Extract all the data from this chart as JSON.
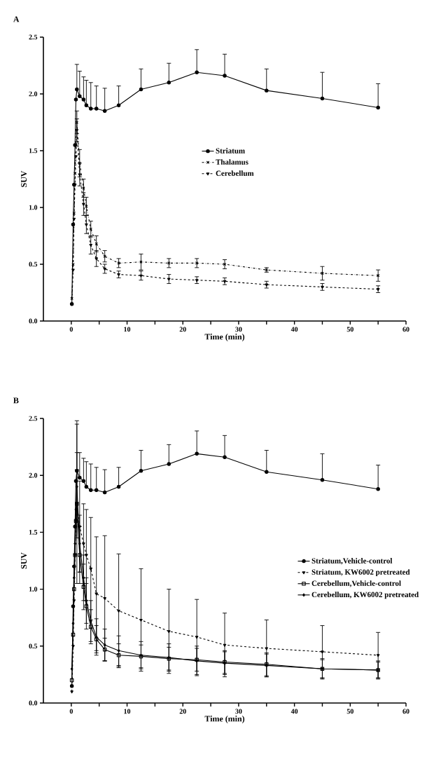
{
  "chart_data": [
    {
      "type": "line",
      "title": "A",
      "xlabel": "Time (min)",
      "ylabel": "SUV",
      "legend": "center",
      "x": [
        0.1,
        0.33,
        0.5,
        0.67,
        0.83,
        1.0,
        1.5,
        2.2,
        2.7,
        3.5,
        4.5,
        6,
        8.5,
        12.5,
        17.5,
        22.5,
        27.5,
        35,
        45,
        55
      ],
      "xlim": [
        -5,
        60
      ],
      "ylim": [
        0,
        2.5
      ],
      "xticks": [
        0,
        {
          "value": 5,
          "label": null
        },
        10,
        {
          "value": 15,
          "label": null
        },
        20,
        {
          "value": 25,
          "label": null
        },
        30,
        {
          "value": 35,
          "label": null
        },
        40,
        {
          "value": 45,
          "label": null
        },
        50,
        {
          "value": 55,
          "label": null
        },
        60
      ],
      "yticks": [
        {
          "value": 0,
          "label": "0.0"
        },
        {
          "value": 0.5,
          "label": "0.5"
        },
        {
          "value": 1,
          "label": "1.0"
        },
        {
          "value": 1.5,
          "label": "1.5"
        },
        {
          "value": 2,
          "label": "2.0"
        },
        {
          "value": 2.5,
          "label": "2.5"
        }
      ],
      "series": [
        {
          "name": "Striatum",
          "color": "#000000",
          "marker": "circle",
          "line_style": "solid",
          "values": [
            0.15,
            0.85,
            1.2,
            1.55,
            1.95,
            2.04,
            1.98,
            1.95,
            1.9,
            1.87,
            1.87,
            1.85,
            1.9,
            2.04,
            2.1,
            2.19,
            2.16,
            2.03,
            1.96,
            1.88
          ],
          "errors": [
            null,
            null,
            null,
            null,
            null,
            [
              2.04,
              2.26
            ],
            [
              1.98,
              2.2
            ],
            [
              1.95,
              2.15
            ],
            [
              1.9,
              2.12
            ],
            [
              1.87,
              2.1
            ],
            [
              1.87,
              2.07
            ],
            [
              1.85,
              2.05
            ],
            [
              1.9,
              2.07
            ],
            [
              2.04,
              2.22
            ],
            [
              2.1,
              2.27
            ],
            [
              2.19,
              2.39
            ],
            [
              2.16,
              2.35
            ],
            [
              2.03,
              2.22
            ],
            [
              1.96,
              2.19
            ],
            [
              1.88,
              2.09
            ]
          ]
        },
        {
          "name": "Thalamus",
          "color": "#000000",
          "marker": "cross",
          "line_style": "dashdot",
          "values": [
            0.2,
            0.5,
            0.95,
            1.3,
            1.55,
            1.75,
            1.39,
            1.17,
            1.01,
            0.81,
            0.68,
            0.57,
            0.51,
            0.52,
            0.51,
            0.51,
            0.5,
            0.45,
            0.42,
            0.4
          ],
          "errors": [
            null,
            null,
            null,
            null,
            null,
            0.1,
            0.12,
            0.08,
            0.08,
            0.07,
            0.07,
            0.05,
            0.04,
            0.07,
            0.04,
            0.04,
            0.04,
            0.02,
            0.06,
            0.05
          ]
        },
        {
          "name": "Cerebellum",
          "color": "#000000",
          "marker": "triangle",
          "line_style": "dashed",
          "values": [
            0.15,
            0.45,
            0.9,
            1.2,
            1.45,
            1.68,
            1.29,
            1.03,
            0.85,
            0.67,
            0.55,
            0.46,
            0.41,
            0.4,
            0.37,
            0.36,
            0.35,
            0.32,
            0.3,
            0.28
          ],
          "errors": [
            null,
            null,
            null,
            null,
            null,
            0.1,
            0.1,
            0.1,
            0.08,
            0.08,
            0.07,
            0.04,
            0.03,
            0.04,
            0.04,
            0.03,
            0.03,
            0.03,
            0.03,
            0.03
          ]
        }
      ]
    },
    {
      "type": "line",
      "title": "B",
      "xlabel": "Time (min)",
      "ylabel": "SUV",
      "legend": "center right",
      "x": [
        0.1,
        0.33,
        0.5,
        0.67,
        0.83,
        1.0,
        1.5,
        2.2,
        2.7,
        3.5,
        4.5,
        6,
        8.5,
        12.5,
        17.5,
        22.5,
        27.5,
        35,
        45,
        55
      ],
      "xlim": [
        -5,
        60
      ],
      "ylim": [
        0,
        2.5
      ],
      "xticks": [
        0,
        {
          "value": 5,
          "label": null
        },
        10,
        {
          "value": 15,
          "label": null
        },
        20,
        {
          "value": 25,
          "label": null
        },
        30,
        {
          "value": 35,
          "label": null
        },
        40,
        {
          "value": 45,
          "label": null
        },
        50,
        {
          "value": 55,
          "label": null
        },
        60
      ],
      "yticks": [
        {
          "value": 0,
          "label": "0.0"
        },
        {
          "value": 0.5,
          "label": "0.5"
        },
        {
          "value": 1,
          "label": "1.0"
        },
        {
          "value": 1.5,
          "label": "1.5"
        },
        {
          "value": 2,
          "label": "2.0"
        },
        {
          "value": 2.5,
          "label": "2.5"
        }
      ],
      "series": [
        {
          "name": "Striatum,Vehicle-control",
          "color": "#000000",
          "marker": "circle",
          "line_style": "solid",
          "values": [
            0.15,
            0.85,
            1.2,
            1.55,
            1.95,
            2.04,
            1.98,
            1.95,
            1.9,
            1.87,
            1.87,
            1.85,
            1.9,
            2.04,
            2.1,
            2.19,
            2.16,
            2.03,
            1.96,
            1.88
          ],
          "errors": [
            null,
            null,
            null,
            null,
            null,
            [
              2.04,
              2.48
            ],
            [
              1.98,
              2.2
            ],
            [
              1.95,
              2.15
            ],
            [
              1.9,
              2.12
            ],
            [
              1.87,
              2.1
            ],
            [
              1.87,
              2.07
            ],
            [
              1.85,
              2.05
            ],
            [
              1.9,
              2.07
            ],
            [
              2.04,
              2.22
            ],
            [
              2.1,
              2.27
            ],
            [
              2.19,
              2.39
            ],
            [
              2.16,
              2.35
            ],
            [
              2.03,
              2.22
            ],
            [
              1.96,
              2.19
            ],
            [
              1.88,
              2.09
            ]
          ]
        },
        {
          "name": "Striatum, KW6002 pretreated",
          "color": "#000000",
          "marker": "triangle",
          "line_style": "dashed",
          "values": [
            0.1,
            0.5,
            0.9,
            1.3,
            1.6,
            1.75,
            1.55,
            1.4,
            1.3,
            1.18,
            0.96,
            0.92,
            0.81,
            0.73,
            0.63,
            0.58,
            0.51,
            0.48,
            0.45,
            0.42
          ],
          "errors": [
            null,
            null,
            null,
            null,
            null,
            0.7,
            0.4,
            0.35,
            0.4,
            0.45,
            0.5,
            0.55,
            0.5,
            0.45,
            0.37,
            0.33,
            0.28,
            0.25,
            0.23,
            0.2
          ]
        },
        {
          "name": "Cerebellum,Vehicle-control",
          "color": "#000000",
          "marker": "square",
          "line_style": "solid",
          "values": [
            0.2,
            0.6,
            1.0,
            1.3,
            1.6,
            1.75,
            1.3,
            1.02,
            0.85,
            0.67,
            0.56,
            0.47,
            0.42,
            0.41,
            0.39,
            0.38,
            0.36,
            0.34,
            0.3,
            0.29
          ],
          "errors": [
            null,
            null,
            null,
            null,
            null,
            0.3,
            0.25,
            0.2,
            0.2,
            0.15,
            0.12,
            0.1,
            0.1,
            0.1,
            0.1,
            0.1,
            0.1,
            0.1,
            0.08,
            0.07
          ]
        },
        {
          "name": "Cerebellum, KW6002 pretreated",
          "color": "#000000",
          "marker": "diamond",
          "line_style": "solid",
          "values": [
            0.3,
            0.7,
            1.1,
            1.4,
            1.7,
            1.9,
            1.4,
            1.1,
            0.9,
            0.72,
            0.58,
            0.51,
            0.46,
            0.42,
            0.4,
            0.37,
            0.35,
            0.33,
            0.3,
            0.29
          ],
          "errors": [
            null,
            null,
            null,
            null,
            null,
            0.3,
            0.25,
            0.2,
            0.2,
            0.18,
            0.16,
            0.14,
            0.13,
            0.12,
            0.12,
            0.13,
            0.1,
            0.1,
            0.09,
            0.08
          ]
        }
      ]
    }
  ]
}
